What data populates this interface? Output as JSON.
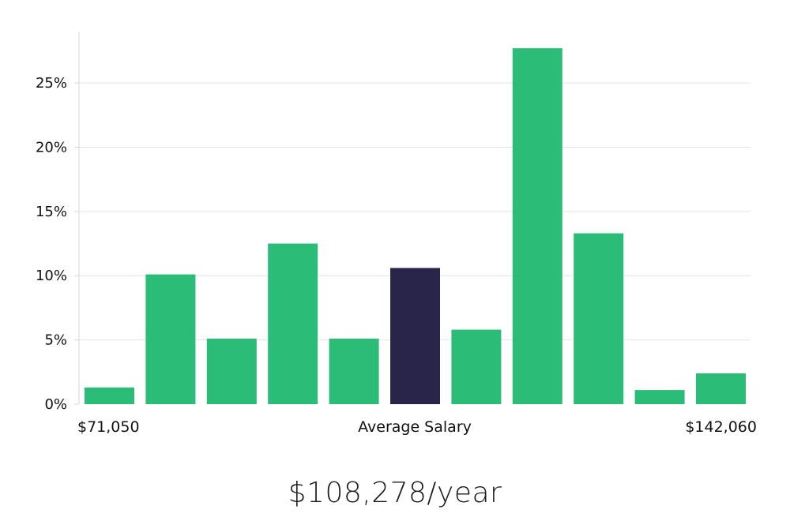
{
  "chart_data": {
    "type": "bar",
    "values": [
      1.3,
      10.1,
      5.1,
      12.5,
      5.1,
      10.6,
      5.8,
      27.7,
      13.3,
      1.1,
      2.4
    ],
    "highlight_index": 5,
    "ylim": [
      0,
      29
    ],
    "yticks": [
      0,
      5,
      10,
      15,
      20,
      25
    ],
    "ytick_labels": [
      "0%",
      "5%",
      "10%",
      "15%",
      "20%",
      "25%"
    ],
    "x_min_label": "$71,050",
    "x_center_label": "Average Salary",
    "x_max_label": "$142,060",
    "grid": true,
    "colors": {
      "bar": "#2bbd77",
      "highlight": "#28244a",
      "grid": "#e2e4e7",
      "axis": "#d5d7db"
    }
  },
  "salary_text": "$108,278/year"
}
